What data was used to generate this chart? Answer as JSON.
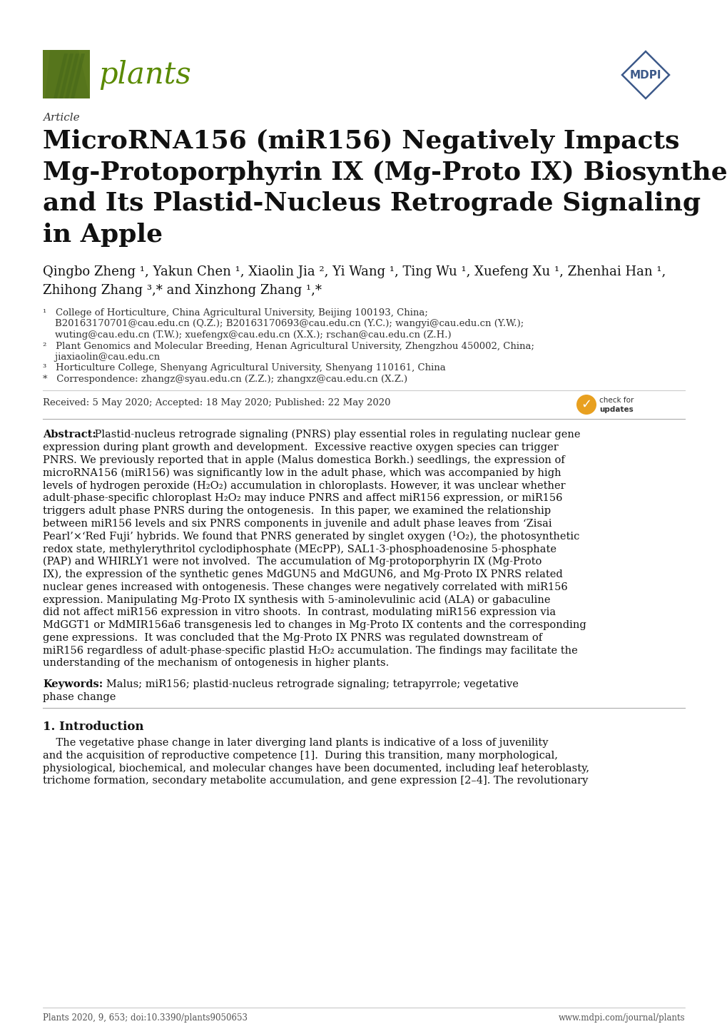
{
  "page_bg": "#ffffff",
  "journal_name": "plants",
  "journal_color": "#5a8a00",
  "article_label": "Article",
  "title_line1": "MicroRNA156 (miR156) Negatively Impacts",
  "title_line2": "Mg-Protoporphyrin IX (Mg-Proto IX) Biosynthesis",
  "title_line3": "and Its Plastid-Nucleus Retrograde Signaling",
  "title_line4": "in Apple",
  "author_line1": "Qingbo Zheng ¹, Yakun Chen ¹, Xiaolin Jia ², Yi Wang ¹, Ting Wu ¹, Xuefeng Xu ¹, Zhenhai Han ¹,",
  "author_line2": "Zhihong Zhang ³,* and Xinzhong Zhang ¹,*",
  "affil1a": "¹   College of Horticulture, China Agricultural University, Beijing 100193, China;",
  "affil1b": "    B20163170701@cau.edu.cn (Q.Z.); B20163170693@cau.edu.cn (Y.C.); wangyi@cau.edu.cn (Y.W.);",
  "affil1c": "    wuting@cau.edu.cn (T.W.); xuefengx@cau.edu.cn (X.X.); rschan@cau.edu.cn (Z.H.)",
  "affil2a": "²   Plant Genomics and Molecular Breeding, Henan Agricultural University, Zhengzhou 450002, China;",
  "affil2b": "    jiaxiaolin@cau.edu.cn",
  "affil3": "³   Horticulture College, Shenyang Agricultural University, Shenyang 110161, China",
  "affil4": "*   Correspondence: zhangz@syau.edu.cn (Z.Z.); zhangxz@cau.edu.cn (X.Z.)",
  "dates": "Received: 5 May 2020; Accepted: 18 May 2020; Published: 22 May 2020",
  "abstract_lines": [
    "Abstract: Plastid-nucleus retrograde signaling (PNRS) play essential roles in regulating nuclear gene",
    "expression during plant growth and development.  Excessive reactive oxygen species can trigger",
    "PNRS. We previously reported that in apple (Malus domestica Borkh.) seedlings, the expression of",
    "microRNA156 (miR156) was significantly low in the adult phase, which was accompanied by high",
    "levels of hydrogen peroxide (H₂O₂) accumulation in chloroplasts. However, it was unclear whether",
    "adult-phase-specific chloroplast H₂O₂ may induce PNRS and affect miR156 expression, or miR156",
    "triggers adult phase PNRS during the ontogenesis.  In this paper, we examined the relationship",
    "between miR156 levels and six PNRS components in juvenile and adult phase leaves from ‘Zisai",
    "Pearl’×‘Red Fuji’ hybrids. We found that PNRS generated by singlet oxygen (¹O₂), the photosynthetic",
    "redox state, methylerythritol cyclodiphosphate (MEcPP), SAL1-3-phosphoadenosine 5-phosphate",
    "(PAP) and WHIRLY1 were not involved.  The accumulation of Mg-protoporphyrin IX (Mg-Proto",
    "IX), the expression of the synthetic genes MdGUN5 and MdGUN6, and Mg-Proto IX PNRS related",
    "nuclear genes increased with ontogenesis. These changes were negatively correlated with miR156",
    "expression. Manipulating Mg-Proto IX synthesis with 5-aminolevulinic acid (ALA) or gabaculine",
    "did not affect miR156 expression in vitro shoots.  In contrast, modulating miR156 expression via",
    "MdGGT1 or MdMIR156a6 transgenesis led to changes in Mg-Proto IX contents and the corresponding",
    "gene expressions.  It was concluded that the Mg-Proto IX PNRS was regulated downstream of",
    "miR156 regardless of adult-phase-specific plastid H₂O₂ accumulation. The findings may facilitate the",
    "understanding of the mechanism of ontogenesis in higher plants."
  ],
  "keywords_line1": "Keywords:   Malus; miR156; plastid-nucleus retrograde signaling; tetrapyrrole; vegetative",
  "keywords_line2": "phase change",
  "section1_title": "1. Introduction",
  "intro_lines": [
    "    The vegetative phase change in later diverging land plants is indicative of a loss of juvenility",
    "and the acquisition of reproductive competence [1].  During this transition, many morphological,",
    "physiological, biochemical, and molecular changes have been documented, including leaf heteroblasty,",
    "trichome formation, secondary metabolite accumulation, and gene expression [2–4]. The revolutionary"
  ],
  "footer_left": "Plants 2020, 9, 653; doi:10.3390/plants9050653",
  "footer_right": "www.mdpi.com/journal/plants",
  "logo_box_color": "#5c7a1e",
  "logo_leaf_color": "#4a6b1a",
  "mdpi_color": "#3d5a8a",
  "text_dark": "#111111",
  "text_mid": "#333333",
  "text_light": "#555555"
}
